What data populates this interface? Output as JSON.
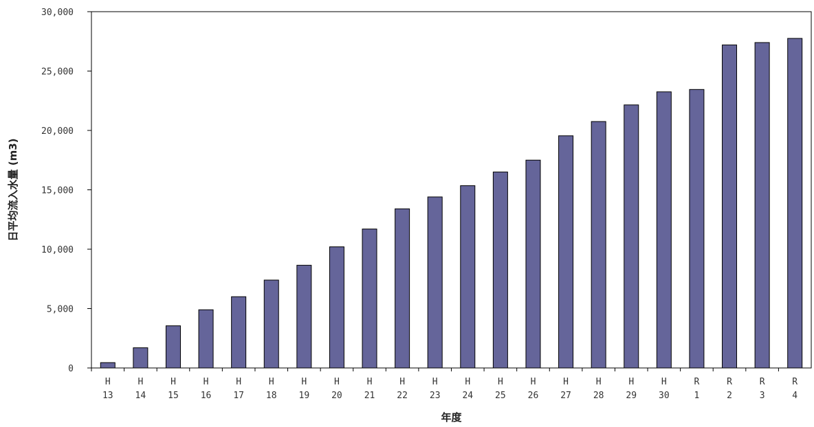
{
  "chart_data": {
    "type": "bar",
    "categories": [
      [
        "H",
        "13"
      ],
      [
        "H",
        "14"
      ],
      [
        "H",
        "15"
      ],
      [
        "H",
        "16"
      ],
      [
        "H",
        "17"
      ],
      [
        "H",
        "18"
      ],
      [
        "H",
        "19"
      ],
      [
        "H",
        "20"
      ],
      [
        "H",
        "21"
      ],
      [
        "H",
        "22"
      ],
      [
        "H",
        "23"
      ],
      [
        "H",
        "24"
      ],
      [
        "H",
        "25"
      ],
      [
        "H",
        "26"
      ],
      [
        "H",
        "27"
      ],
      [
        "H",
        "28"
      ],
      [
        "H",
        "29"
      ],
      [
        "H",
        "30"
      ],
      [
        "R",
        "1"
      ],
      [
        "R",
        "2"
      ],
      [
        "R",
        "3"
      ],
      [
        "R",
        "4"
      ]
    ],
    "values": [
      450,
      1700,
      3550,
      4900,
      6000,
      7400,
      8650,
      10200,
      11700,
      13400,
      14400,
      15350,
      16500,
      17500,
      19550,
      20750,
      22150,
      23250,
      23450,
      27200,
      27400,
      27750
    ],
    "xlabel": "年度",
    "ylabel": "日平均流入水量 (m3)",
    "ylim": [
      0,
      30000
    ],
    "yticks": [
      0,
      5000,
      10000,
      15000,
      20000,
      25000,
      30000
    ],
    "ytick_labels": [
      "0",
      "5,000",
      "10,000",
      "15,000",
      "20,000",
      "25,000",
      "30,000"
    ],
    "grid": false,
    "legend": "none",
    "colors": {
      "bar_fill": "#65659a",
      "bar_stroke": "#000000",
      "axis": "#000000"
    }
  }
}
